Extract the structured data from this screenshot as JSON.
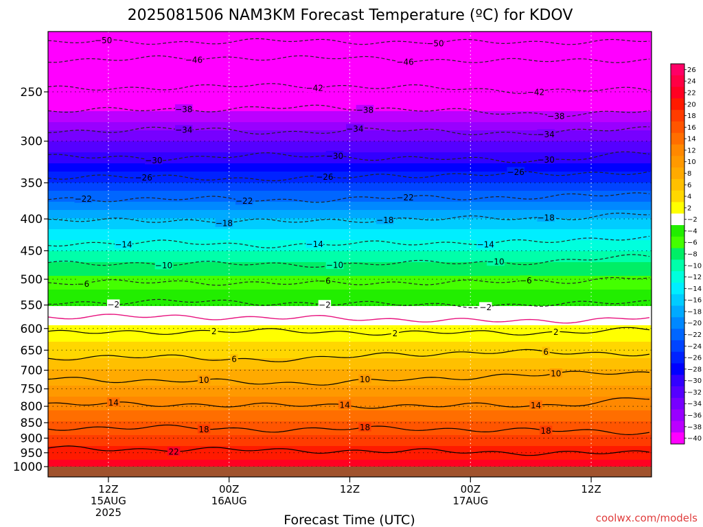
{
  "title": "2025081506 NAM3KM Forecast Temperature (ºC) for KDOV",
  "credit": "coolwx.com/models",
  "colors": {
    "contour_negative": "#222222",
    "contour_positive": "#000000",
    "freezing_line": "#e8127e",
    "terrain": "#a0522d"
  },
  "chart_data": {
    "type": "heatmap",
    "title": "2025081506 NAM3KM Forecast Temperature (ºC) for KDOV",
    "xlabel": "Forecast Time (UTC)",
    "ylabel": "",
    "x_range_hours": [
      0,
      60
    ],
    "x_ticks": [
      {
        "hour": 6,
        "lines": [
          "12Z",
          "15AUG",
          "2025"
        ]
      },
      {
        "hour": 18,
        "lines": [
          "00Z",
          "16AUG"
        ]
      },
      {
        "hour": 30,
        "lines": [
          "12Z"
        ]
      },
      {
        "hour": 42,
        "lines": [
          "00Z",
          "17AUG"
        ]
      },
      {
        "hour": 54,
        "lines": [
          "12Z"
        ]
      }
    ],
    "y_axis": {
      "scale": "log-pressure",
      "range": [
        1000,
        200
      ],
      "unit": "hPa"
    },
    "y_ticks": [
      250,
      300,
      350,
      400,
      450,
      500,
      550,
      600,
      650,
      700,
      750,
      800,
      850,
      900,
      950,
      1000
    ],
    "grid": true,
    "colorbar": {
      "placement": "right",
      "levels": [
        26,
        24,
        22,
        20,
        18,
        16,
        14,
        12,
        10,
        8,
        6,
        4,
        2,
        -2,
        -4,
        -6,
        -8,
        -10,
        -12,
        -14,
        -16,
        -18,
        -20,
        -22,
        -24,
        -26,
        -28,
        -30,
        -32,
        -34,
        -36,
        -38,
        -40
      ],
      "labels": [
        "26",
        "24",
        "22",
        "20",
        "18",
        "16",
        "14",
        "12",
        "10",
        "8",
        "6",
        "4",
        "2",
        "−2",
        "−4",
        "−6",
        "−8",
        "−10",
        "−12",
        "−14",
        "−16",
        "−18",
        "−20",
        "−22",
        "−24",
        "−26",
        "−28",
        "−30",
        "−32",
        "−34",
        "−36",
        "−38",
        "−40"
      ]
    },
    "temperature_profile": [
      {
        "pressure": 1000,
        "temp": 23
      },
      {
        "pressure": 950,
        "temp": 21
      },
      {
        "pressure": 900,
        "temp": 18.5
      },
      {
        "pressure": 850,
        "temp": 16
      },
      {
        "pressure": 800,
        "temp": 13.5
      },
      {
        "pressure": 750,
        "temp": 10.5
      },
      {
        "pressure": 700,
        "temp": 8
      },
      {
        "pressure": 650,
        "temp": 5
      },
      {
        "pressure": 600,
        "temp": 2.5
      },
      {
        "pressure": 550,
        "temp": -2
      },
      {
        "pressure": 500,
        "temp": -5.5
      },
      {
        "pressure": 450,
        "temp": -10
      },
      {
        "pressure": 400,
        "temp": -16
      },
      {
        "pressure": 350,
        "temp": -24
      },
      {
        "pressure": 300,
        "temp": -32
      },
      {
        "pressure": 250,
        "temp": -42
      },
      {
        "pressure": 200,
        "temp": -52
      }
    ],
    "contours": [
      {
        "level": -50,
        "label": "−50",
        "label_hours": [
          5.5,
          38.5
        ],
        "pressure": [
          208,
          208,
          207,
          208,
          208,
          207
        ]
      },
      {
        "level": -46,
        "label": "−46",
        "label_hours": [
          14.5,
          35.5
        ],
        "pressure": [
          222,
          221,
          220,
          222,
          223,
          222
        ]
      },
      {
        "level": -42,
        "label": "−42",
        "label_hours": [
          26.5,
          48.5
        ],
        "pressure": [
          247,
          246,
          244,
          246,
          249,
          248
        ]
      },
      {
        "level": -38,
        "label": "−38",
        "label_hours": [
          13.5,
          31.5,
          50.5
        ],
        "pressure": [
          268,
          267,
          265,
          266,
          272,
          268
        ]
      },
      {
        "level": -34,
        "label": "−34",
        "label_hours": [
          13.5,
          30.5,
          49.5
        ],
        "pressure": [
          289,
          287,
          290,
          288,
          292,
          285
        ]
      },
      {
        "level": -30,
        "label": "−30",
        "label_hours": [
          10.5,
          28.5,
          49.5
        ],
        "pressure": [
          318,
          319,
          316,
          320,
          322,
          314
        ]
      },
      {
        "level": -26,
        "label": "−26",
        "label_hours": [
          9.5,
          27.5,
          46.5
        ],
        "pressure": [
          342,
          343,
          345,
          340,
          339,
          336
        ]
      },
      {
        "level": -22,
        "label": "−22",
        "label_hours": [
          3.5,
          19.5,
          35.5
        ],
        "pressure": [
          372,
          371,
          373,
          370,
          369,
          365
        ]
      },
      {
        "level": -18,
        "label": "−18",
        "label_hours": [
          17.5,
          33.5,
          49.5
        ],
        "pressure": [
          403,
          402,
          404,
          400,
          399,
          393
        ]
      },
      {
        "level": -14,
        "label": "−14",
        "label_hours": [
          7.5,
          26.5,
          43.5
        ],
        "pressure": [
          438,
          437,
          441,
          437,
          436,
          427
        ]
      },
      {
        "level": -10,
        "label": "−10",
        "label_hours": [
          11.5,
          28.5,
          44.5
        ],
        "pressure": [
          472,
          471,
          474,
          471,
          469,
          460
        ]
      },
      {
        "level": -6,
        "label": "−6",
        "label_hours": [
          3.5,
          27.5,
          47.5
        ],
        "pressure": [
          507,
          505,
          508,
          506,
          505,
          496
        ]
      },
      {
        "level": -2,
        "label": "−2",
        "label_hours": [
          6.5,
          27.5,
          43.5
        ],
        "pressure": [
          545,
          543,
          546,
          549,
          551,
          542
        ]
      },
      {
        "level": 2,
        "label": "2",
        "label_hours": [
          16.5,
          34.5,
          50.5
        ],
        "pressure": [
          610,
          607,
          606,
          610,
          609,
          603
        ]
      },
      {
        "level": 6,
        "label": "6",
        "label_hours": [
          18.5,
          49.5
        ],
        "pressure": [
          668,
          667,
          674,
          658,
          655,
          658
        ]
      },
      {
        "level": 10,
        "label": "10",
        "label_hours": [
          15.5,
          31.5,
          50.5
        ],
        "pressure": [
          722,
          728,
          734,
          726,
          710,
          708
        ]
      },
      {
        "level": 14,
        "label": "14",
        "label_hours": [
          6.5,
          29.5,
          48.5
        ],
        "pressure": [
          795,
          794,
          798,
          798,
          798,
          778
        ]
      },
      {
        "level": 18,
        "label": "18",
        "label_hours": [
          15.5,
          31.5,
          49.5
        ],
        "pressure": [
          866,
          866,
          872,
          868,
          875,
          880
        ]
      },
      {
        "level": 22,
        "label": "22",
        "label_hours": [
          12.5
        ],
        "pressure": [
          935,
          938,
          942,
          945,
          950,
          952
        ]
      }
    ],
    "freezing_line": {
      "level": 0,
      "pressure": [
        575,
        574,
        577,
        580,
        585,
        575
      ]
    }
  }
}
